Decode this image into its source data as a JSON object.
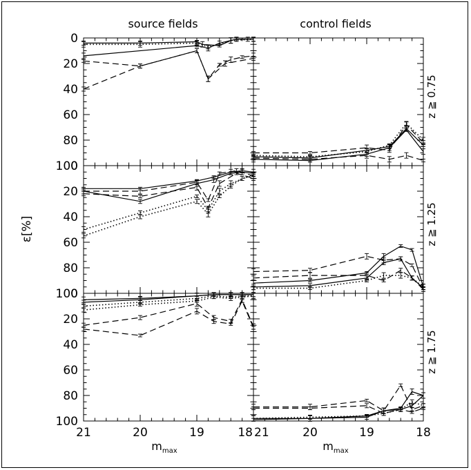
{
  "figure": {
    "column_titles": [
      "source fields",
      "control fields"
    ],
    "row_labels": [
      "z ≧ 0.75",
      "z ≧ 1.25",
      "z ≧ 1.75"
    ],
    "xlabel": "m",
    "xlabel_sub": "max",
    "ylabel": "ε[%]"
  },
  "chart_data": [
    {
      "type": "line",
      "column": "source fields",
      "row": "z ≧ 0.75",
      "xlim": [
        21,
        18
      ],
      "ylim": [
        100,
        0
      ],
      "xticks": [
        21,
        20,
        19,
        18
      ],
      "yticks": [
        0,
        20,
        40,
        60,
        80,
        100
      ],
      "series": [
        {
          "style": "solid",
          "x": [
            21,
            20,
            19,
            18.9,
            18.6,
            18.4,
            18.3,
            18.1,
            18
          ],
          "y": [
            4,
            4,
            3,
            5,
            6,
            2,
            1,
            1,
            1
          ]
        },
        {
          "style": "solid",
          "x": [
            21,
            19,
            18.8,
            18.6,
            18.3,
            18
          ],
          "y": [
            14,
            6,
            8,
            4,
            1,
            1
          ]
        },
        {
          "style": "dotted",
          "x": [
            21,
            20,
            19,
            18.8,
            18.4,
            18
          ],
          "y": [
            5,
            5,
            4,
            7,
            2,
            1
          ]
        },
        {
          "style": "dashed",
          "x": [
            21,
            20,
            19,
            18.8,
            18.6,
            18.4,
            18.2,
            18
          ],
          "y": [
            40,
            22,
            10,
            32,
            21,
            17,
            15,
            14
          ]
        },
        {
          "style": "dashed",
          "x": [
            21,
            20,
            19,
            18.8,
            18.5,
            18
          ],
          "y": [
            18,
            22,
            10,
            32,
            20,
            16
          ]
        }
      ]
    },
    {
      "type": "line",
      "column": "control fields",
      "row": "z ≧ 0.75",
      "xlim": [
        21,
        18
      ],
      "ylim": [
        100,
        0
      ],
      "xticks": [
        21,
        20,
        19,
        18
      ],
      "yticks": [
        0,
        20,
        40,
        60,
        80,
        100
      ],
      "series": [
        {
          "style": "solid",
          "x": [
            21,
            20,
            19,
            18.6,
            18.3,
            18
          ],
          "y": [
            93,
            94,
            88,
            85,
            71,
            84
          ]
        },
        {
          "style": "solid",
          "x": [
            21,
            20,
            19,
            18.6,
            18.3,
            18
          ],
          "y": [
            95,
            96,
            91,
            86,
            72,
            89
          ]
        },
        {
          "style": "dotted",
          "x": [
            21,
            20,
            19,
            18.6,
            18.3,
            18
          ],
          "y": [
            92,
            93,
            89,
            84,
            67,
            80
          ]
        },
        {
          "style": "dashed",
          "x": [
            21,
            20,
            19,
            18.6,
            18.3,
            18
          ],
          "y": [
            90,
            90,
            86,
            88,
            68,
            82
          ]
        },
        {
          "style": "dashed",
          "x": [
            21,
            20,
            19,
            18.6,
            18.3,
            18
          ],
          "y": [
            94,
            95,
            92,
            95,
            92,
            96
          ]
        }
      ]
    },
    {
      "type": "line",
      "column": "source fields",
      "row": "z ≧ 1.25",
      "xlim": [
        21,
        18
      ],
      "ylim": [
        100,
        0
      ],
      "xticks": [
        21,
        20,
        19,
        18
      ],
      "yticks": [
        0,
        20,
        40,
        60,
        80,
        100
      ],
      "series": [
        {
          "style": "solid",
          "x": [
            21,
            20,
            19,
            18.7,
            18.4,
            18.2,
            18
          ],
          "y": [
            18,
            18,
            12,
            9,
            5,
            4,
            5
          ]
        },
        {
          "style": "solid",
          "x": [
            21,
            20,
            19,
            18.7,
            18.4,
            18.2,
            18
          ],
          "y": [
            20,
            28,
            14,
            11,
            6,
            5,
            6
          ]
        },
        {
          "style": "dashed",
          "x": [
            21,
            20,
            19,
            18.8,
            18.6,
            18.3,
            18
          ],
          "y": [
            20,
            20,
            13,
            27,
            6,
            4,
            8
          ]
        },
        {
          "style": "dashed",
          "x": [
            21,
            20,
            19,
            18.8,
            18.6,
            18.3,
            18
          ],
          "y": [
            22,
            24,
            17,
            33,
            14,
            6,
            10
          ]
        },
        {
          "style": "dotted",
          "x": [
            21,
            20,
            19,
            18.8,
            18.6,
            18.4,
            18.2,
            18
          ],
          "y": [
            55,
            40,
            28,
            38,
            24,
            16,
            10,
            8
          ]
        },
        {
          "style": "dotted",
          "x": [
            21,
            20,
            19,
            18.8,
            18.6,
            18.4,
            18
          ],
          "y": [
            50,
            37,
            24,
            35,
            20,
            14,
            7
          ]
        }
      ]
    },
    {
      "type": "line",
      "column": "control fields",
      "row": "z ≧ 1.25",
      "xlim": [
        21,
        18
      ],
      "ylim": [
        100,
        0
      ],
      "xticks": [
        21,
        20,
        19,
        18
      ],
      "yticks": [
        0,
        20,
        40,
        60,
        80,
        100
      ],
      "series": [
        {
          "style": "solid",
          "x": [
            21,
            20,
            19,
            18.7,
            18.4,
            18.2,
            18
          ],
          "y": [
            92,
            90,
            84,
            71,
            63,
            66,
            95
          ]
        },
        {
          "style": "solid",
          "x": [
            21,
            20,
            19,
            18.7,
            18.4,
            18.2,
            18
          ],
          "y": [
            95,
            94,
            88,
            76,
            73,
            88,
            96
          ]
        },
        {
          "style": "dashed",
          "x": [
            21,
            20,
            19,
            18.7,
            18.4,
            18.2,
            18
          ],
          "y": [
            83,
            82,
            71,
            74,
            73,
            78,
            96
          ]
        },
        {
          "style": "dashed",
          "x": [
            21,
            20,
            19,
            18.7,
            18.4,
            18.2,
            18
          ],
          "y": [
            88,
            86,
            86,
            90,
            82,
            88,
            97
          ]
        },
        {
          "style": "dotted",
          "x": [
            21,
            20,
            19,
            18.7,
            18.4,
            18.2,
            18
          ],
          "y": [
            96,
            96,
            90,
            86,
            86,
            88,
            95
          ]
        }
      ]
    },
    {
      "type": "line",
      "column": "source fields",
      "row": "z ≧ 1.75",
      "xlim": [
        21,
        18
      ],
      "ylim": [
        100,
        0
      ],
      "xticks": [
        21,
        20,
        19,
        18
      ],
      "yticks": [
        0,
        20,
        40,
        60,
        80,
        100
      ],
      "series": [
        {
          "style": "solid",
          "x": [
            21,
            20,
            19,
            18.7,
            18.4,
            18.2,
            18
          ],
          "y": [
            5,
            4,
            2,
            1,
            1,
            1,
            1
          ]
        },
        {
          "style": "solid",
          "x": [
            21,
            20,
            19,
            18.7,
            18.4,
            18.2,
            18
          ],
          "y": [
            7,
            5,
            2,
            1,
            1,
            1,
            1
          ]
        },
        {
          "style": "dotted",
          "x": [
            21,
            20,
            19,
            18.7,
            18.4,
            18.2,
            18
          ],
          "y": [
            10,
            7,
            4,
            2,
            3,
            2,
            2
          ]
        },
        {
          "style": "dotted",
          "x": [
            21,
            20,
            19,
            18.7,
            18.4,
            18.2,
            18
          ],
          "y": [
            13,
            9,
            6,
            3,
            4,
            3,
            2
          ]
        },
        {
          "style": "dashed",
          "x": [
            21,
            20,
            19,
            18.7,
            18.4,
            18.2,
            18
          ],
          "y": [
            25,
            19,
            8,
            19,
            22,
            5,
            26
          ]
        },
        {
          "style": "dashed",
          "x": [
            21,
            20,
            19,
            18.7,
            18.4,
            18.2,
            18
          ],
          "y": [
            28,
            33,
            14,
            22,
            24,
            6,
            27
          ]
        }
      ]
    },
    {
      "type": "line",
      "column": "control fields",
      "row": "z ≧ 1.75",
      "xlim": [
        21,
        18
      ],
      "ylim": [
        100,
        0
      ],
      "xticks": [
        21,
        20,
        19,
        18
      ],
      "yticks": [
        0,
        20,
        40,
        60,
        80,
        100
      ],
      "series": [
        {
          "style": "solid",
          "x": [
            21,
            20,
            19,
            18.7,
            18.4,
            18.2,
            18
          ],
          "y": [
            98,
            98,
            96,
            92,
            90,
            77,
            80
          ]
        },
        {
          "style": "solid",
          "x": [
            21,
            20,
            19,
            18.7,
            18.4,
            18.2,
            18
          ],
          "y": [
            99,
            98,
            97,
            92,
            91,
            88,
            80
          ]
        },
        {
          "style": "dotted",
          "x": [
            21,
            20,
            19,
            18.7,
            18.4,
            18.2,
            18
          ],
          "y": [
            98,
            97,
            96,
            94,
            91,
            85,
            88
          ]
        },
        {
          "style": "dashed",
          "x": [
            21,
            20,
            19,
            18.7,
            18.4,
            18.2,
            18
          ],
          "y": [
            89,
            89,
            84,
            92,
            72,
            91,
            88
          ]
        },
        {
          "style": "dashed",
          "x": [
            21,
            20,
            19,
            18.7,
            18.4,
            18.2,
            18
          ],
          "y": [
            90,
            90,
            88,
            94,
            91,
            93,
            90
          ]
        }
      ]
    }
  ]
}
